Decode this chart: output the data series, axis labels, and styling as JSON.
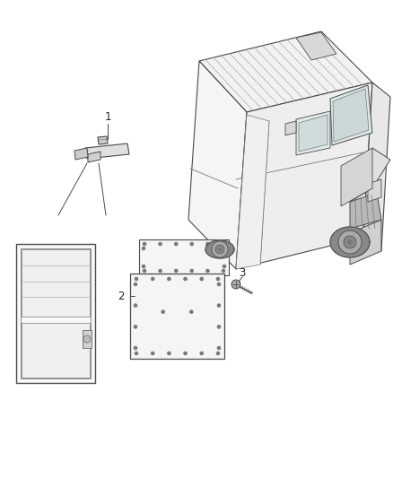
{
  "bg_color": "#ffffff",
  "lc": "#4a4a4a",
  "lc_light": "#aaaaaa",
  "lc_med": "#777777",
  "figsize": [
    4.38,
    5.33
  ],
  "dpi": 100,
  "label1": "1",
  "label2": "2",
  "label3": "3",
  "label_fs": 8.5
}
